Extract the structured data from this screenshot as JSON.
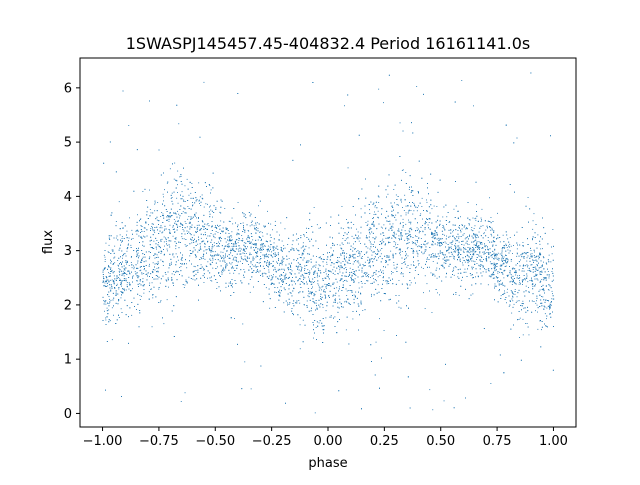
{
  "chart_data": {
    "type": "scatter",
    "title": "1SWASPJ145457.45-404832.4 Period 16161141.0s",
    "xlabel": "phase",
    "ylabel": "flux",
    "xlim": [
      -1.1,
      1.1
    ],
    "ylim": [
      -0.25,
      6.55
    ],
    "x_ticks": [
      -1.0,
      -0.75,
      -0.5,
      -0.25,
      0.0,
      0.25,
      0.5,
      0.75,
      1.0
    ],
    "x_tick_labels": [
      "−1.00",
      "−0.75",
      "−0.50",
      "−0.25",
      "0.00",
      "0.25",
      "0.50",
      "0.75",
      "1.00"
    ],
    "y_ticks": [
      0,
      1,
      2,
      3,
      4,
      5,
      6
    ],
    "y_tick_labels": [
      "0",
      "1",
      "2",
      "3",
      "4",
      "5",
      "6"
    ],
    "grid": false,
    "legend": "none",
    "marker_color": "#1f77b4",
    "series": [
      {
        "values_profile": {
          "phase": [
            -1.0,
            -0.95,
            -0.9,
            -0.85,
            -0.8,
            -0.75,
            -0.7,
            -0.65,
            -0.6,
            -0.55,
            -0.5,
            -0.45,
            -0.4,
            -0.35,
            -0.3,
            -0.25,
            -0.2,
            -0.15,
            -0.1,
            -0.05,
            0.0,
            0.05,
            0.1,
            0.15,
            0.2,
            0.25,
            0.3,
            0.35,
            0.4,
            0.45,
            0.5,
            0.55,
            0.6,
            0.65,
            0.7,
            0.75,
            0.8,
            0.85,
            0.9,
            0.95,
            1.0
          ],
          "median_flux": [
            2.3,
            2.5,
            2.7,
            2.8,
            3.0,
            3.1,
            3.3,
            3.4,
            3.3,
            3.2,
            3.1,
            3.0,
            3.0,
            3.1,
            3.0,
            2.8,
            2.6,
            2.5,
            2.7,
            2.4,
            2.3,
            2.5,
            2.7,
            2.8,
            3.0,
            3.1,
            3.3,
            3.4,
            3.3,
            3.2,
            3.1,
            3.0,
            3.0,
            3.1,
            3.0,
            2.8,
            2.6,
            2.5,
            2.7,
            2.4,
            2.3
          ],
          "scatter_halfwidth": [
            0.7,
            0.8,
            0.8,
            0.9,
            0.9,
            0.9,
            1.0,
            1.0,
            0.9,
            0.8,
            0.7,
            0.6,
            0.6,
            0.6,
            0.5,
            0.6,
            0.7,
            0.7,
            0.8,
            0.8,
            0.7,
            0.8,
            0.8,
            0.9,
            0.9,
            0.9,
            1.0,
            1.0,
            0.9,
            0.8,
            0.7,
            0.6,
            0.6,
            0.6,
            0.5,
            0.6,
            0.7,
            0.7,
            0.8,
            0.8,
            0.7
          ],
          "min_flux": 0.0,
          "max_flux": 6.3
        }
      }
    ]
  }
}
